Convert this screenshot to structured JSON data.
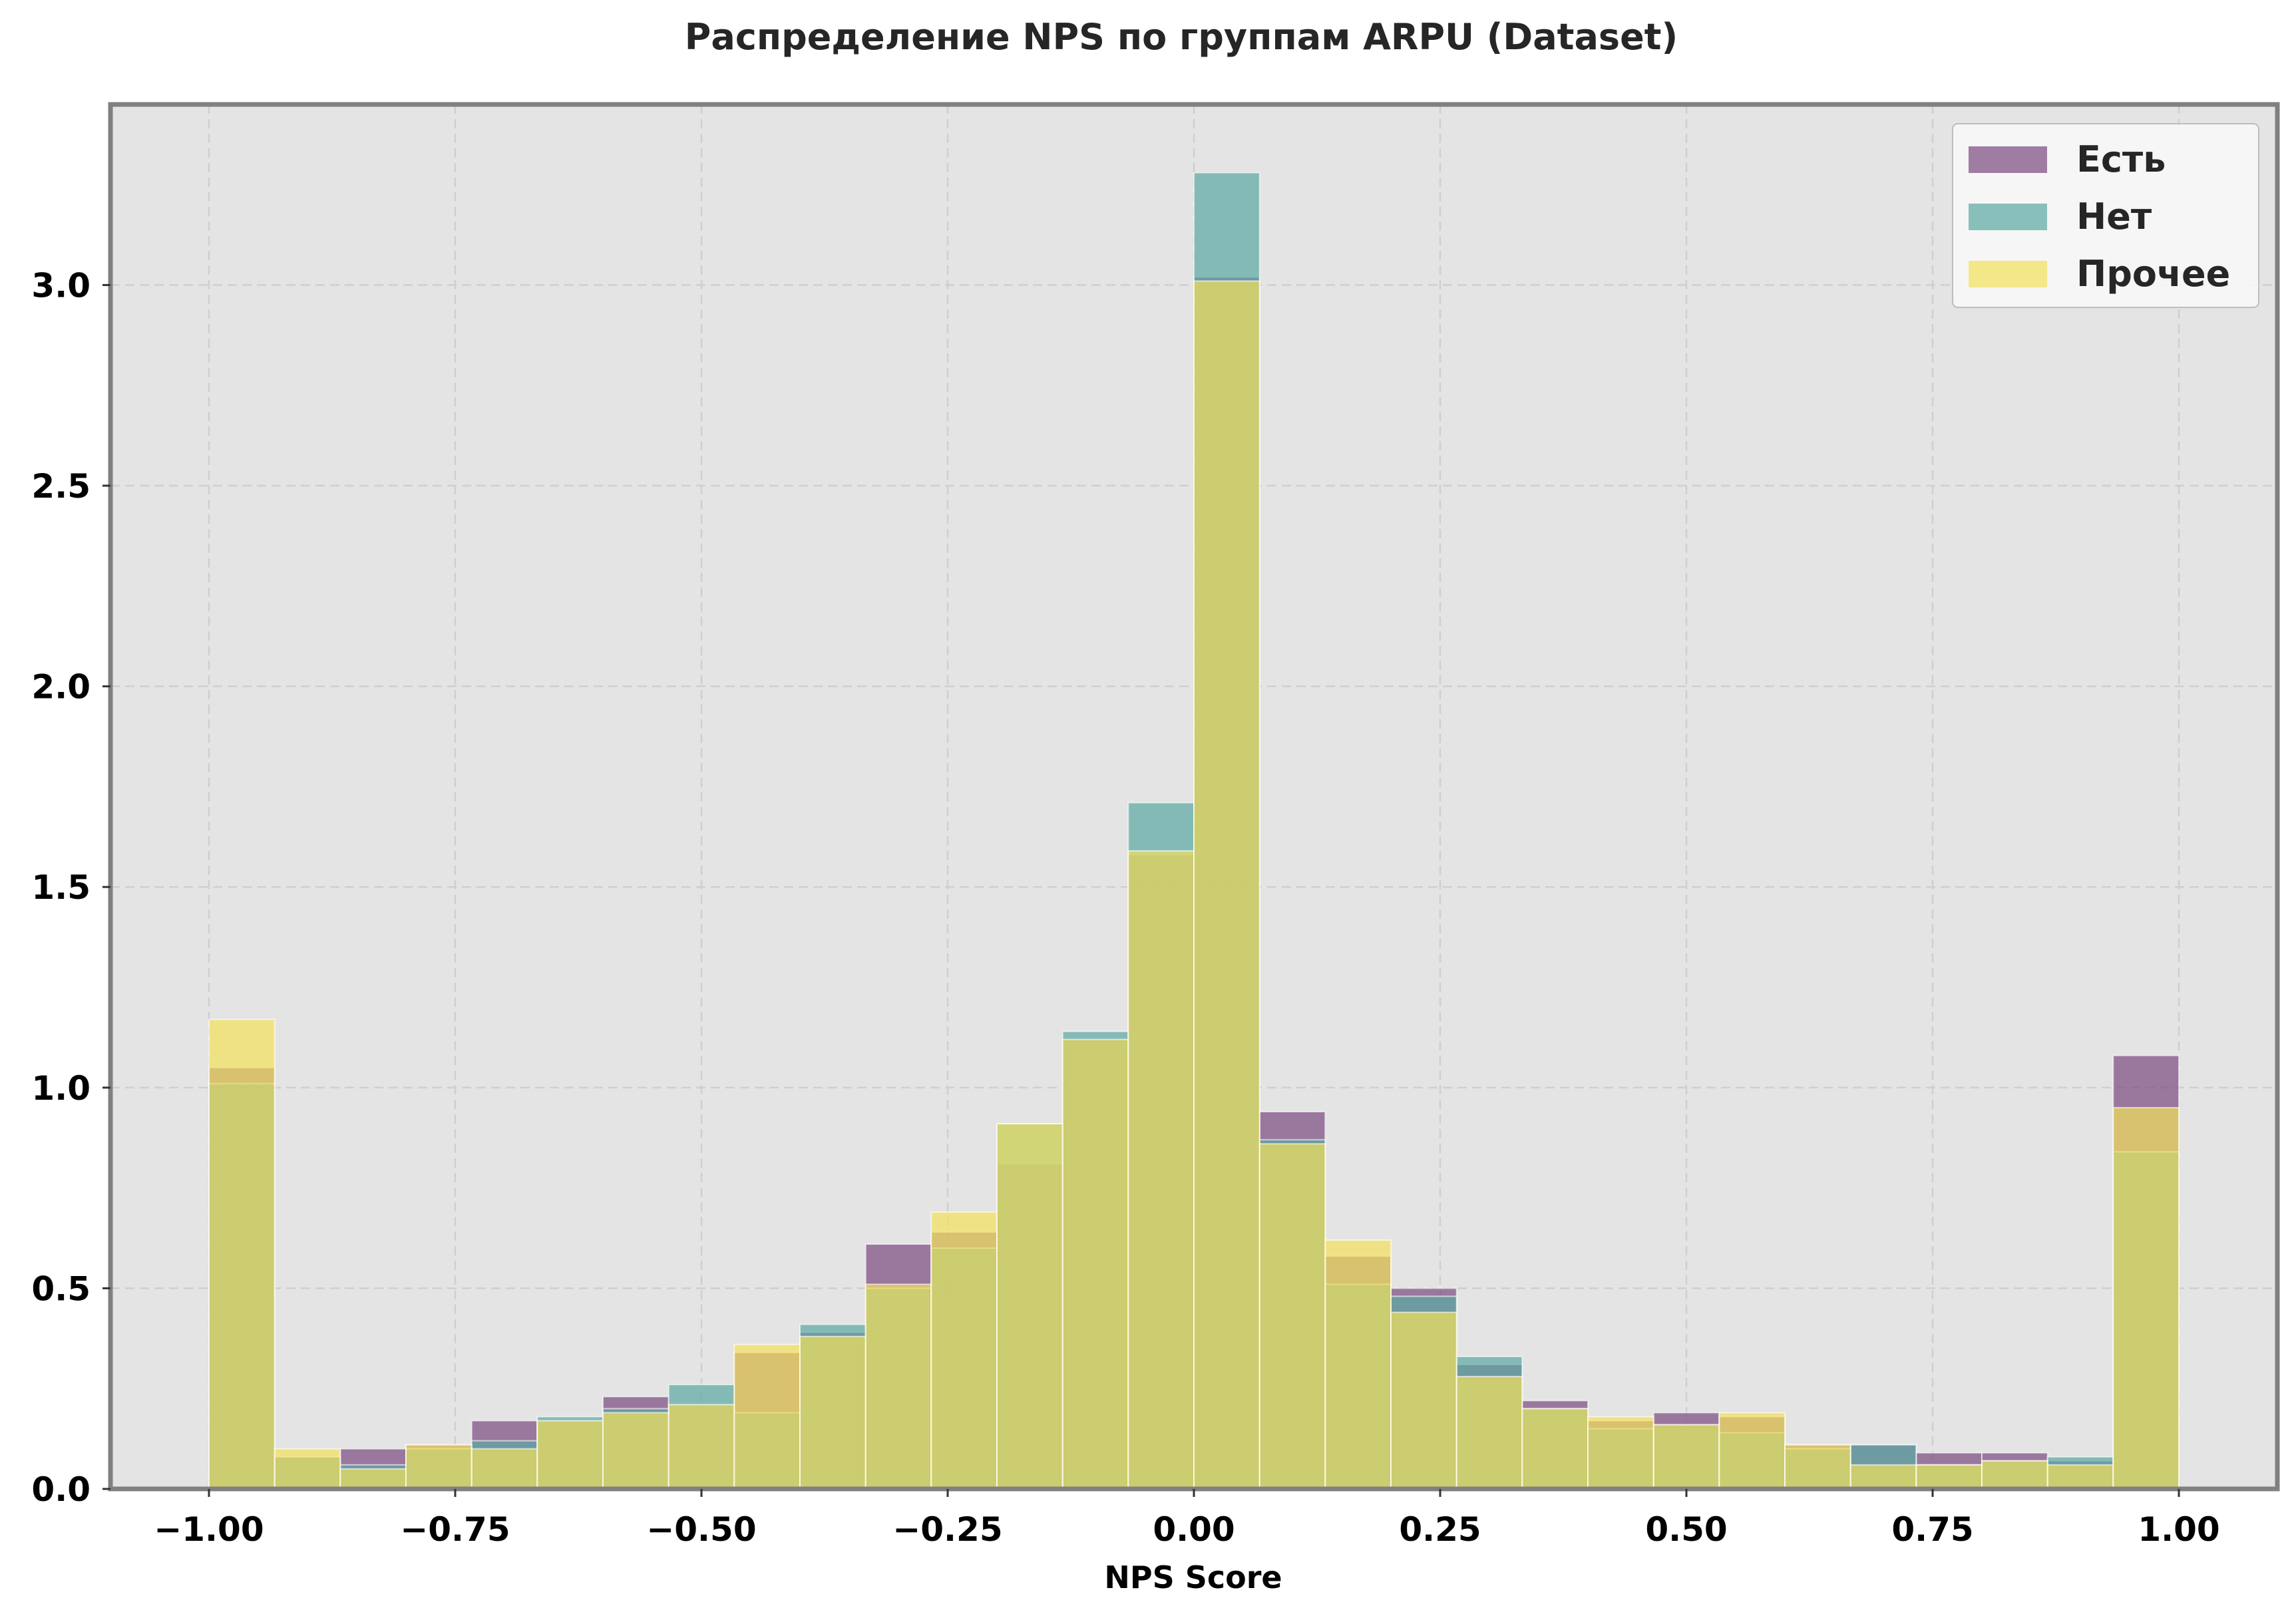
{
  "chart_data": {
    "type": "bar",
    "title": "Распределение NPS по группам ARPU (Dataset)",
    "xlabel": "NPS Score",
    "ylabel": "",
    "xlim": [
      -1.1,
      1.1
    ],
    "ylim": [
      0,
      3.45
    ],
    "bin_edges": [
      -1.0,
      -0.9333,
      -0.8667,
      -0.8,
      -0.7333,
      -0.6667,
      -0.6,
      -0.5333,
      -0.4667,
      -0.4,
      -0.3333,
      -0.2667,
      -0.2,
      -0.1333,
      -0.0667,
      0.0,
      0.0667,
      0.1333,
      0.2,
      0.2667,
      0.3333,
      0.4,
      0.4667,
      0.5333,
      0.6,
      0.6667,
      0.7333,
      0.8,
      0.8667,
      0.9333,
      1.0
    ],
    "x_ticks": [
      -1.0,
      -0.75,
      -0.5,
      -0.25,
      0.0,
      0.25,
      0.5,
      0.75,
      1.0
    ],
    "x_tick_labels": [
      "−1.00",
      "−0.75",
      "−0.50",
      "−0.25",
      "0.00",
      "0.25",
      "0.50",
      "0.75",
      "1.00"
    ],
    "y_ticks": [
      0.0,
      0.5,
      1.0,
      1.5,
      2.0,
      2.5,
      3.0
    ],
    "y_tick_labels": [
      "0.0",
      "0.5",
      "1.0",
      "1.5",
      "2.0",
      "2.5",
      "3.0"
    ],
    "grid": true,
    "legend_position": "top-right",
    "series": [
      {
        "name": "Есть",
        "color": "#7b4a80",
        "values": [
          1.05,
          0.08,
          0.1,
          0.11,
          0.17,
          0.17,
          0.23,
          0.21,
          0.34,
          0.39,
          0.61,
          0.64,
          0.81,
          1.12,
          1.58,
          3.02,
          0.94,
          0.58,
          0.5,
          0.31,
          0.22,
          0.17,
          0.19,
          0.18,
          0.11,
          0.11,
          0.09,
          0.09,
          0.07,
          1.08
        ]
      },
      {
        "name": "Нет",
        "color": "#5ba8a3",
        "values": [
          1.01,
          0.08,
          0.06,
          0.1,
          0.12,
          0.18,
          0.2,
          0.26,
          0.19,
          0.41,
          0.5,
          0.6,
          0.91,
          1.14,
          1.71,
          3.28,
          0.87,
          0.51,
          0.48,
          0.33,
          0.2,
          0.15,
          0.16,
          0.14,
          0.1,
          0.11,
          0.06,
          0.07,
          0.08,
          0.84
        ]
      },
      {
        "name": "Прочее",
        "color": "#f3e15b",
        "values": [
          1.17,
          0.1,
          0.05,
          0.11,
          0.1,
          0.17,
          0.19,
          0.21,
          0.36,
          0.38,
          0.51,
          0.69,
          0.91,
          1.12,
          1.59,
          3.01,
          0.86,
          0.62,
          0.44,
          0.28,
          0.2,
          0.18,
          0.16,
          0.19,
          0.11,
          0.06,
          0.06,
          0.07,
          0.06,
          0.95
        ]
      }
    ]
  },
  "colors": {
    "plot_background": "#e4e4e4",
    "axes_frame": "#808080",
    "grid": "#cfcfcf",
    "legend_background": "#f7f7f7"
  }
}
